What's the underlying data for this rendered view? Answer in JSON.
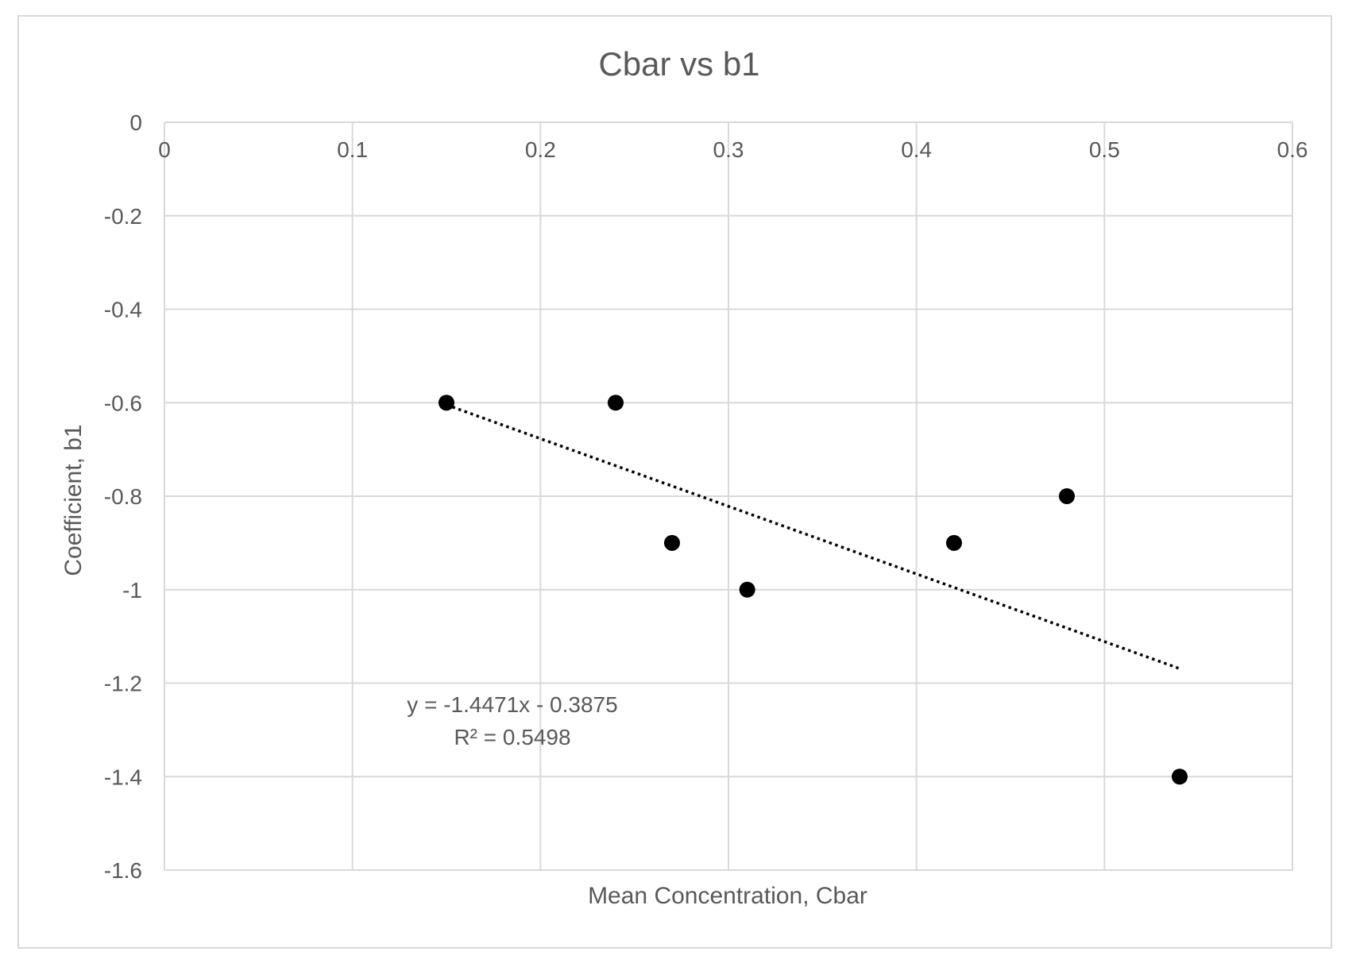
{
  "chart_data": {
    "type": "scatter",
    "title": "Cbar vs b1",
    "xlabel": "Mean Concentration, Cbar",
    "ylabel": "Coefficient, b1",
    "xlim": [
      0,
      0.6
    ],
    "ylim": [
      -1.6,
      0
    ],
    "x_ticks": [
      "0",
      "0.1",
      "0.2",
      "0.3",
      "0.4",
      "0.5",
      "0.6"
    ],
    "y_ticks": [
      "0",
      "-0.2",
      "-0.4",
      "-0.6",
      "-0.8",
      "-1",
      "-1.2",
      "-1.4",
      "-1.6"
    ],
    "x_tick_values": [
      0,
      0.1,
      0.2,
      0.3,
      0.4,
      0.5,
      0.6
    ],
    "y_tick_values": [
      0,
      -0.2,
      -0.4,
      -0.6,
      -0.8,
      -1.0,
      -1.2,
      -1.4,
      -1.6
    ],
    "grid": true,
    "legend": "none",
    "marker_color": "#000000",
    "grid_color": "#d9d9d9",
    "series": [
      {
        "points": [
          {
            "x": 0.15,
            "y": -0.6
          },
          {
            "x": 0.24,
            "y": -0.6
          },
          {
            "x": 0.27,
            "y": -0.9
          },
          {
            "x": 0.31,
            "y": -1.0
          },
          {
            "x": 0.42,
            "y": -0.9
          },
          {
            "x": 0.48,
            "y": -0.8
          },
          {
            "x": 0.54,
            "y": -1.4
          }
        ]
      }
    ],
    "trendline": {
      "type": "linear",
      "slope": -1.4471,
      "intercept": -0.3875,
      "x_range": [
        0.15,
        0.54
      ],
      "style": "dotted",
      "equation_label": "y = -1.4471x - 0.3875",
      "r2_label": "R² = 0.5498"
    }
  }
}
